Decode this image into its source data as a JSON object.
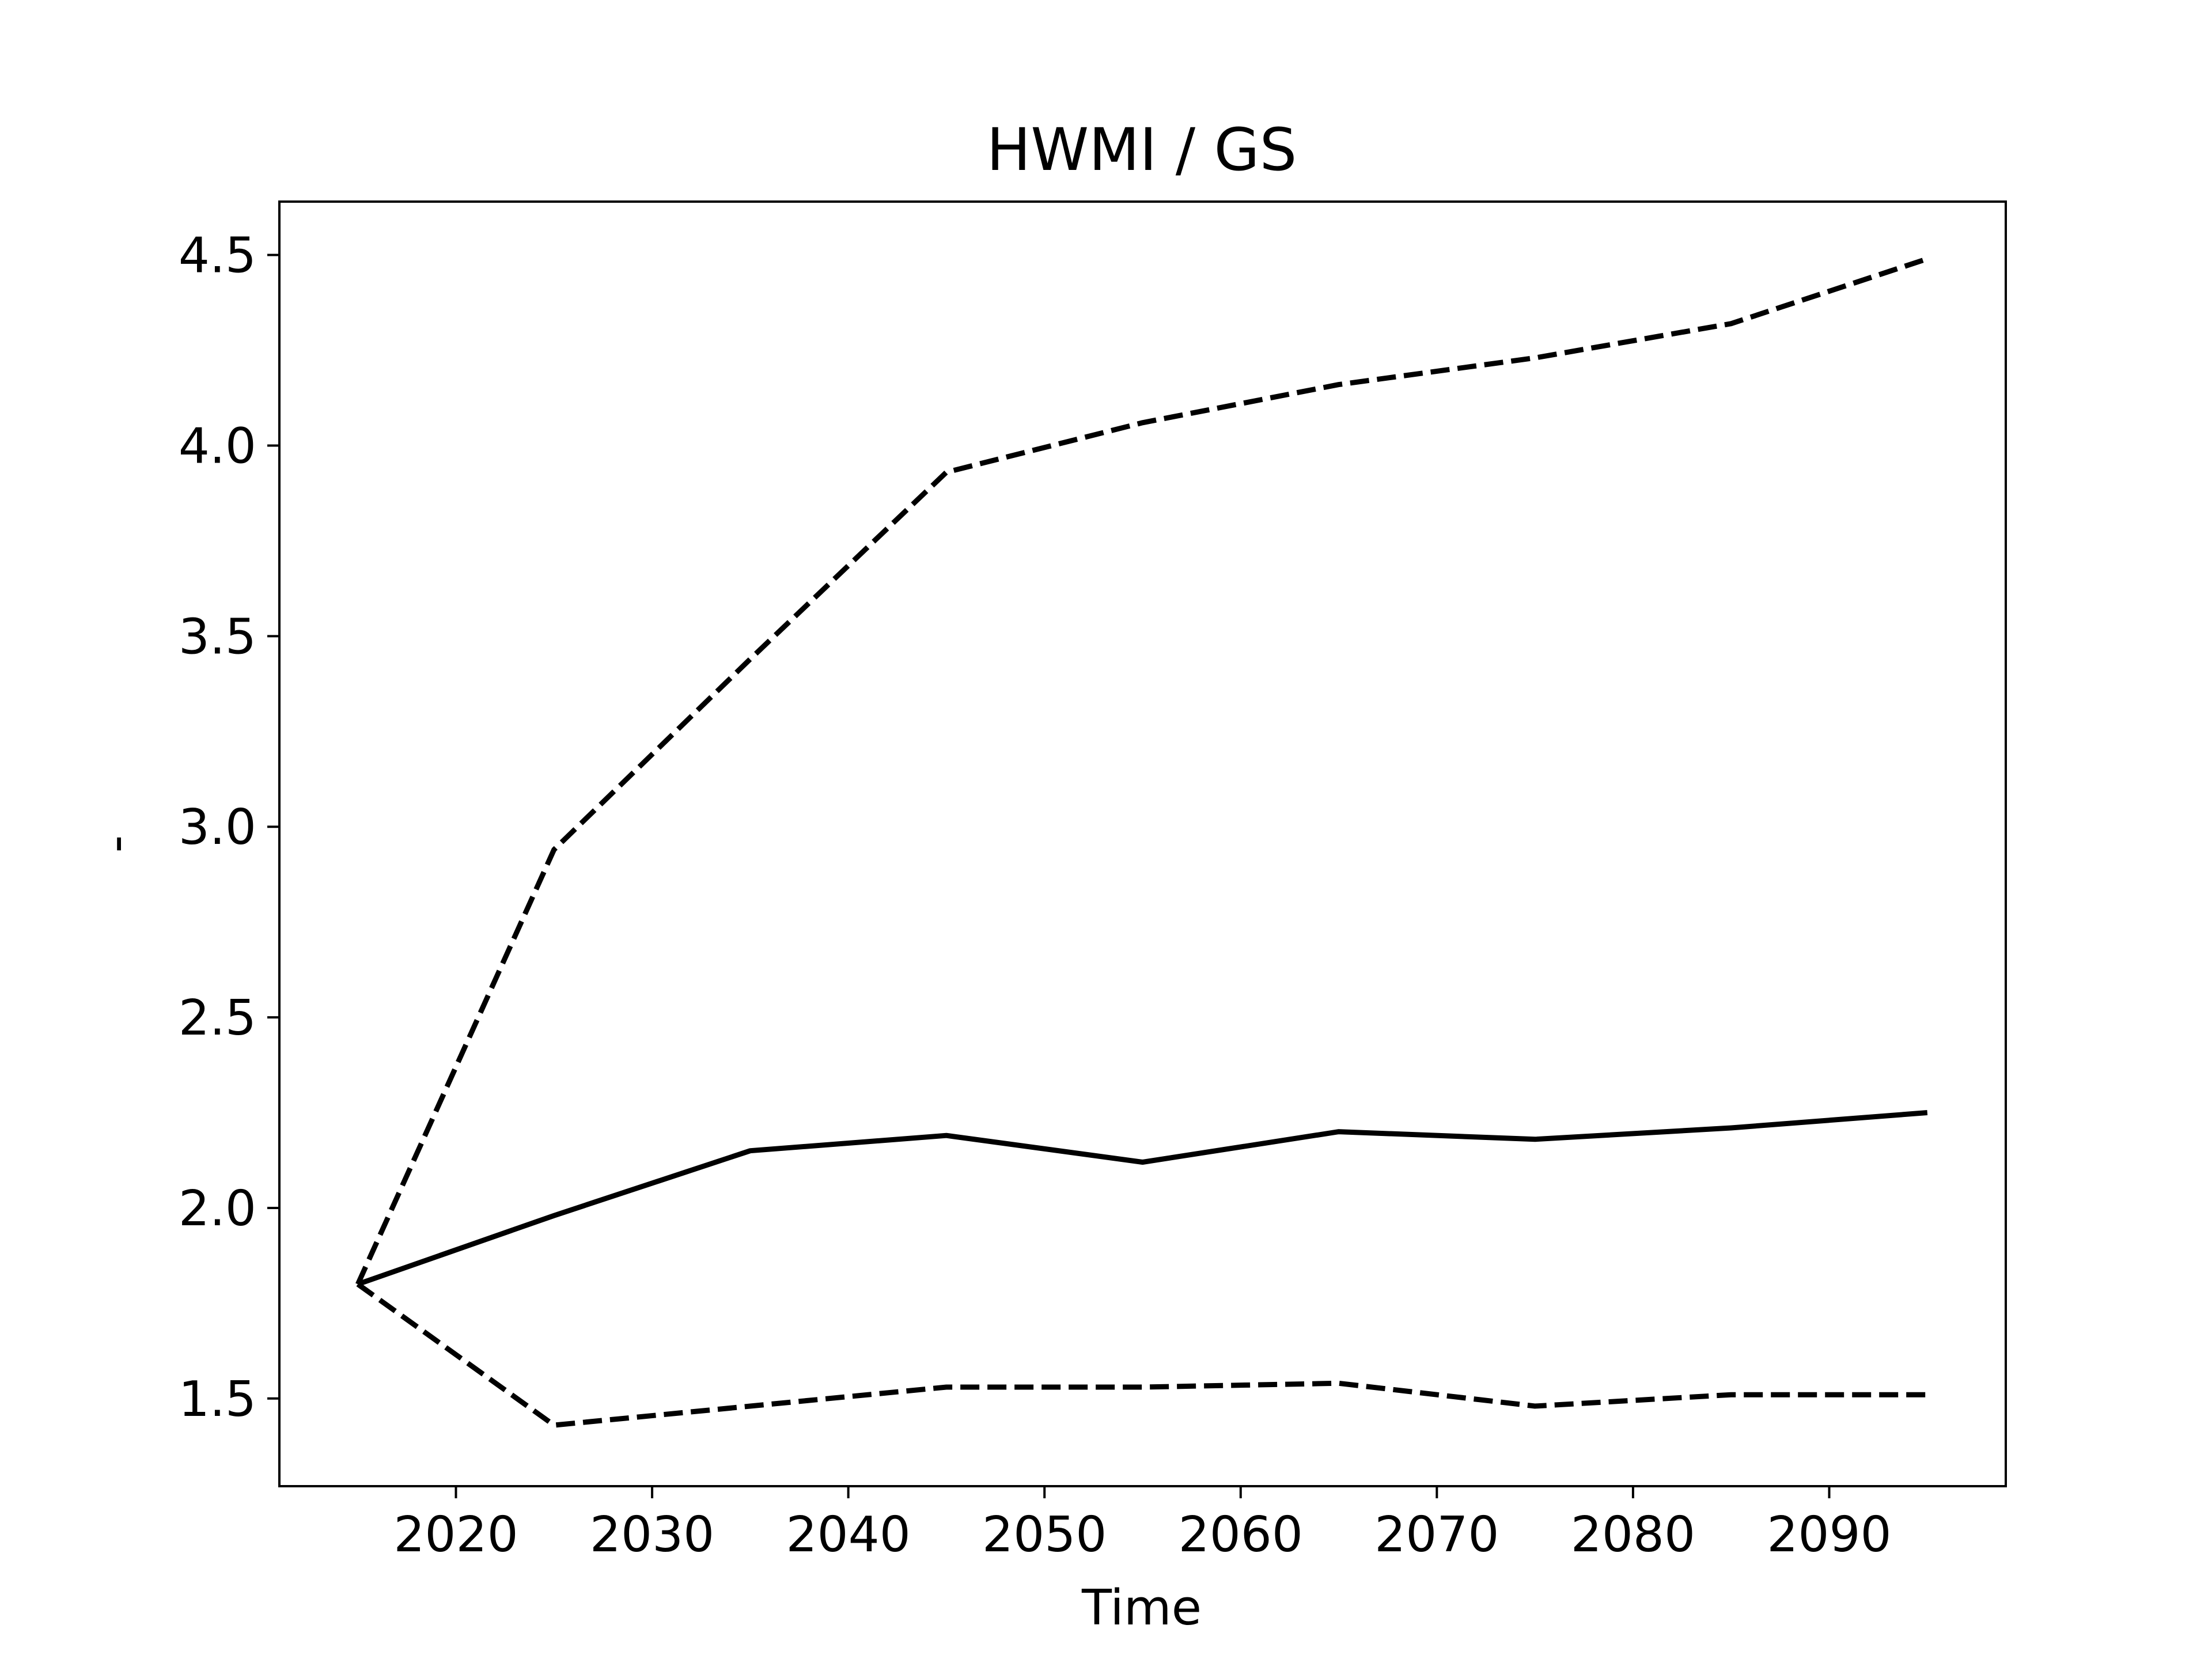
{
  "chart_data": {
    "type": "line",
    "title": "HWMI / GS",
    "xlabel": "Time",
    "ylabel": "-",
    "x": [
      2015,
      2025,
      2035,
      2045,
      2055,
      2065,
      2075,
      2085,
      2095
    ],
    "xlim": [
      2011,
      2099
    ],
    "ylim": [
      1.27,
      4.64
    ],
    "xticks": [
      2020,
      2030,
      2040,
      2050,
      2060,
      2070,
      2080,
      2090
    ],
    "xtick_labels": [
      "2020",
      "2030",
      "2040",
      "2050",
      "2060",
      "2070",
      "2080",
      "2090"
    ],
    "yticks": [
      1.5,
      2.0,
      2.5,
      3.0,
      3.5,
      4.0,
      4.5
    ],
    "ytick_labels": [
      "1.5",
      "2.0",
      "2.5",
      "3.0",
      "3.5",
      "4.0",
      "4.5"
    ],
    "grid": false,
    "series": [
      {
        "style": "dashed",
        "color": "#000000",
        "values": [
          1.8,
          2.94,
          3.44,
          3.93,
          4.06,
          4.16,
          4.23,
          4.32,
          4.49
        ]
      },
      {
        "style": "solid",
        "color": "#000000",
        "values": [
          1.8,
          1.98,
          2.15,
          2.19,
          2.12,
          2.2,
          2.18,
          2.21,
          2.25
        ]
      },
      {
        "style": "dashed",
        "color": "#000000",
        "values": [
          1.8,
          1.43,
          1.48,
          1.53,
          1.53,
          1.54,
          1.48,
          1.51,
          1.51
        ]
      }
    ]
  }
}
